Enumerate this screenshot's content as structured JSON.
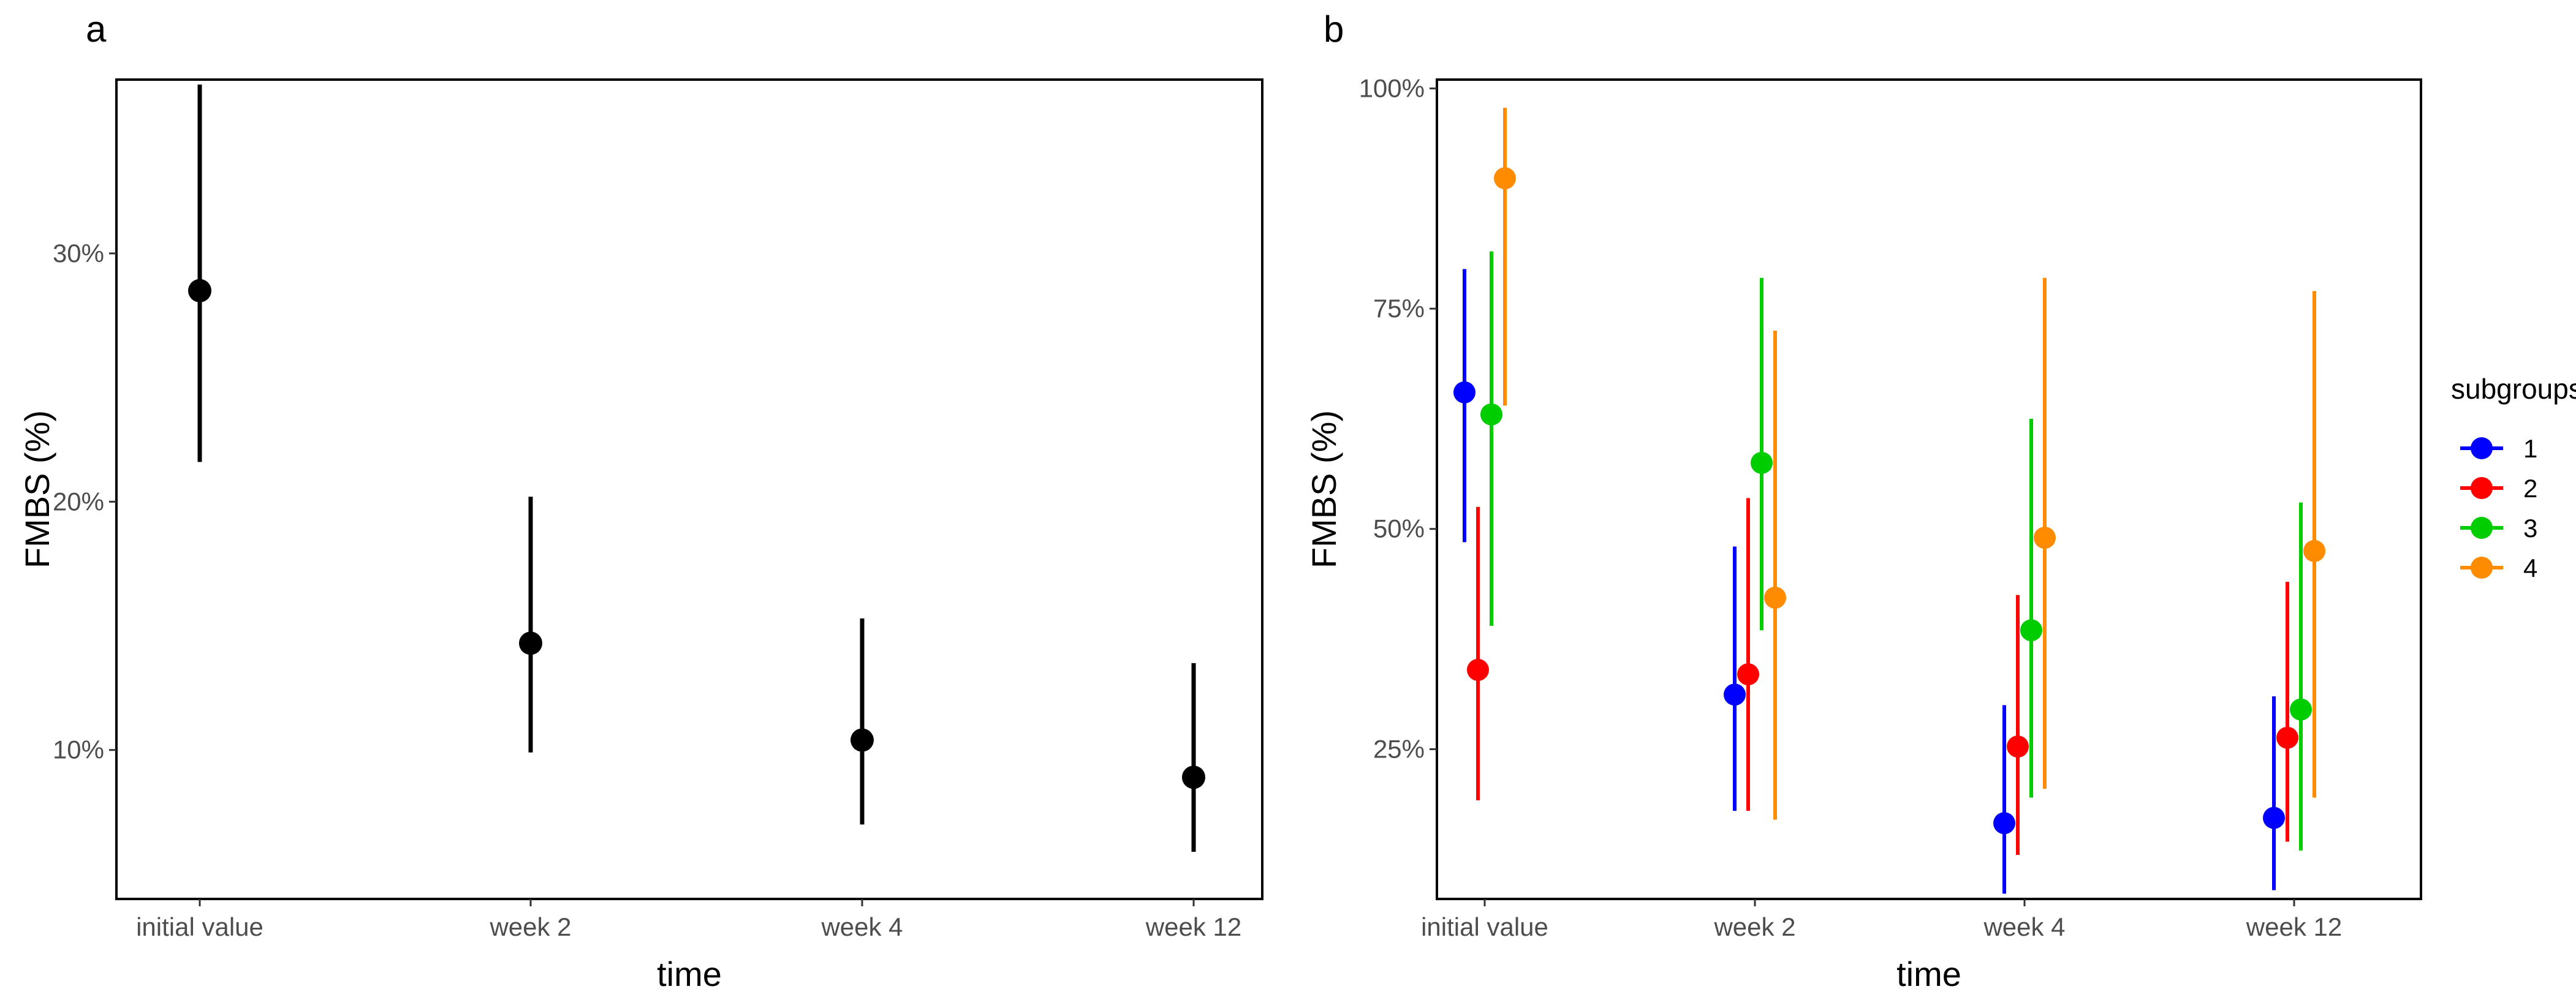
{
  "chart_data": [
    {
      "panel": "a",
      "type": "scatter",
      "categories": [
        "initial value",
        "week 2",
        "week 4",
        "week 12"
      ],
      "xlabel": "time",
      "ylabel": "FMBS (%)",
      "ylim": [
        4,
        37
      ],
      "yticks": [
        10,
        20,
        30
      ],
      "ytick_labels": [
        "10%",
        "20%",
        "30%"
      ],
      "grid": false,
      "series": [
        {
          "color": "#000000",
          "values": [
            28.5,
            14.3,
            10.4,
            8.9
          ],
          "lower": [
            21.6,
            9.9,
            7.0,
            5.9
          ],
          "upper": [
            36.8,
            20.2,
            15.3,
            13.5
          ]
        }
      ]
    },
    {
      "panel": "b",
      "type": "scatter",
      "categories": [
        "initial value",
        "week 2",
        "week 4",
        "week 12"
      ],
      "xlabel": "time",
      "ylabel": "FMBS (%)",
      "ylim": [
        8,
        101
      ],
      "yticks": [
        25,
        50,
        75,
        100
      ],
      "ytick_labels": [
        "25%",
        "50%",
        "75%",
        "100%"
      ],
      "grid": false,
      "legend_title": "subgroups",
      "legend_position": "right",
      "series": [
        {
          "name": "1",
          "color": "#0000ff",
          "values": [
            65.5,
            31.2,
            16.6,
            17.2
          ],
          "lower": [
            48.5,
            18.0,
            8.6,
            9.0
          ],
          "upper": [
            79.5,
            48.0,
            30.0,
            31.0
          ]
        },
        {
          "name": "2",
          "color": "#ff0000",
          "values": [
            34.0,
            33.5,
            25.3,
            26.3
          ],
          "lower": [
            19.2,
            18.0,
            13.0,
            14.5
          ],
          "upper": [
            52.5,
            53.5,
            42.5,
            44.0
          ]
        },
        {
          "name": "3",
          "color": "#00cd00",
          "values": [
            63.0,
            57.5,
            38.5,
            29.5
          ],
          "lower": [
            39.0,
            38.5,
            19.5,
            13.5
          ],
          "upper": [
            81.5,
            78.5,
            62.5,
            53.0
          ]
        },
        {
          "name": "4",
          "color": "#ff8c00",
          "values": [
            89.8,
            42.2,
            49.0,
            47.5
          ],
          "lower": [
            64.0,
            17.0,
            20.5,
            19.5
          ],
          "upper": [
            97.8,
            72.5,
            78.5,
            77.0
          ]
        }
      ]
    }
  ]
}
